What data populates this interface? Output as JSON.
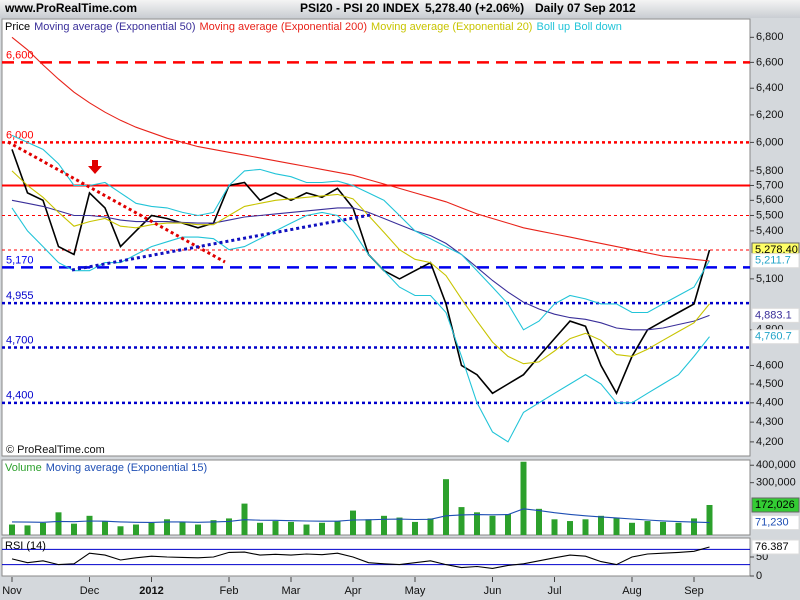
{
  "header": {
    "site": "www.ProRealTime.com",
    "symbol": "PSI20 - PSI 20 INDEX",
    "quote": "5,278.40 (+2.06%)",
    "period": "Daily 07 Sep 2012"
  },
  "chart_data": [
    {
      "type": "line",
      "log_scale": true,
      "footer": "© ProRealTime.com",
      "categories": [
        "Nov",
        null,
        null,
        null,
        null,
        "Dec",
        null,
        null,
        null,
        "2012",
        null,
        null,
        null,
        null,
        "Feb",
        null,
        null,
        null,
        "Mar",
        null,
        null,
        null,
        "Apr",
        null,
        null,
        null,
        "May",
        null,
        null,
        null,
        null,
        "Jun",
        null,
        null,
        null,
        "Jul",
        null,
        null,
        null,
        null,
        "Aug",
        null,
        null,
        null,
        "Sep",
        null
      ],
      "series": [
        {
          "name": "Price",
          "color": "#000000",
          "values": [
            5950,
            5650,
            5600,
            5300,
            5250,
            5650,
            5550,
            5300,
            5400,
            5500,
            5480,
            5450,
            5420,
            5450,
            5700,
            5720,
            5600,
            5650,
            5600,
            5650,
            5620,
            5680,
            5550,
            5250,
            5150,
            5100,
            5150,
            5200,
            4950,
            4600,
            4550,
            4450,
            4500,
            4550,
            4650,
            4750,
            4850,
            4820,
            4600,
            4450,
            4650,
            4800,
            4850,
            4900,
            4950,
            5278.4
          ]
        },
        {
          "name": "Moving average (Exponential 50)",
          "color": "#3a2f9a",
          "values": [
            5600,
            5580,
            5560,
            5530,
            5500,
            5500,
            5490,
            5470,
            5460,
            5460,
            5460,
            5455,
            5450,
            5450,
            5470,
            5490,
            5500,
            5510,
            5520,
            5530,
            5540,
            5550,
            5550,
            5520,
            5480,
            5440,
            5400,
            5370,
            5320,
            5250,
            5170,
            5090,
            5020,
            4960,
            4920,
            4890,
            4870,
            4860,
            4840,
            4810,
            4800,
            4800,
            4810,
            4830,
            4850,
            4883.1
          ]
        },
        {
          "name": "Moving average (Exponential 200)",
          "color": "#e8231a",
          "values": [
            6800,
            6700,
            6580,
            6470,
            6370,
            6290,
            6220,
            6160,
            6110,
            6070,
            6030,
            6000,
            5970,
            5950,
            5930,
            5910,
            5890,
            5870,
            5850,
            5830,
            5810,
            5790,
            5770,
            5740,
            5710,
            5680,
            5650,
            5620,
            5590,
            5550,
            5510,
            5480,
            5450,
            5420,
            5400,
            5380,
            5360,
            5340,
            5320,
            5300,
            5280,
            5260,
            5240,
            5230,
            5220,
            5210
          ]
        },
        {
          "name": "Moving average (Exponential 20)",
          "color": "#c8c400",
          "values": [
            5800,
            5700,
            5620,
            5520,
            5430,
            5460,
            5480,
            5430,
            5420,
            5440,
            5450,
            5450,
            5440,
            5440,
            5500,
            5560,
            5580,
            5600,
            5610,
            5620,
            5630,
            5640,
            5610,
            5500,
            5390,
            5280,
            5220,
            5200,
            5120,
            4980,
            4850,
            4730,
            4650,
            4610,
            4620,
            4680,
            4750,
            4780,
            4740,
            4660,
            4650,
            4690,
            4740,
            4790,
            4840,
            4950
          ]
        },
        {
          "name": "Boll up",
          "color": "#22c4d8",
          "values": [
            6050,
            6000,
            5950,
            5850,
            5700,
            5700,
            5720,
            5650,
            5580,
            5560,
            5550,
            5520,
            5500,
            5520,
            5700,
            5800,
            5810,
            5780,
            5760,
            5720,
            5720,
            5730,
            5700,
            5650,
            5600,
            5500,
            5400,
            5350,
            5300,
            5250,
            5150,
            5050,
            4950,
            4800,
            4850,
            4950,
            5000,
            4980,
            4950,
            4950,
            4900,
            4900,
            4950,
            5000,
            5050,
            5211.7
          ]
        },
        {
          "name": "Boll down",
          "color": "#22c4d8",
          "values": [
            5550,
            5400,
            5300,
            5200,
            5150,
            5150,
            5200,
            5200,
            5250,
            5300,
            5330,
            5360,
            5360,
            5350,
            5280,
            5300,
            5350,
            5400,
            5450,
            5500,
            5520,
            5500,
            5400,
            5250,
            5150,
            5050,
            5000,
            5000,
            4900,
            4650,
            4400,
            4250,
            4200,
            4350,
            4400,
            4450,
            4500,
            4550,
            4500,
            4400,
            4400,
            4450,
            4500,
            4550,
            4650,
            4760.7
          ]
        }
      ],
      "ylim": [
        4130,
        6950
      ],
      "yticks": [
        {
          "value": 6800,
          "label": "6,800"
        },
        {
          "value": 6600,
          "label": "6,600"
        },
        {
          "value": 6400,
          "label": "6,400"
        },
        {
          "value": 6200,
          "label": "6,200"
        },
        {
          "value": 6000,
          "label": "6,000"
        },
        {
          "value": 5800,
          "label": "5,800"
        },
        {
          "value": 5700,
          "label": "5,700"
        },
        {
          "value": 5600,
          "label": "5,600"
        },
        {
          "value": 5500,
          "label": "5,500"
        },
        {
          "value": 5400,
          "label": "5,400"
        },
        {
          "value": 5100,
          "label": "5,100"
        },
        {
          "value": 4800,
          "label": "4,800"
        },
        {
          "value": 4600,
          "label": "4,600"
        },
        {
          "value": 4500,
          "label": "4,500"
        },
        {
          "value": 4400,
          "label": "4,400"
        },
        {
          "value": 4300,
          "label": "4,300"
        },
        {
          "value": 4200,
          "label": "4,200"
        }
      ],
      "levels": [
        {
          "value": 6600,
          "label": "6,600",
          "color": "#ff0000",
          "style": "dashed"
        },
        {
          "value": 6000,
          "label": "6,000",
          "color": "#ff0000",
          "style": "dotted"
        },
        {
          "value": 5700,
          "color": "#ff0000",
          "style": "solid"
        },
        {
          "value": 5500,
          "color": "#ff0000",
          "style": "dotted"
        },
        {
          "value": 5278.4,
          "color": "#ff0000",
          "style": "dotted"
        },
        {
          "value": 5170,
          "label": "5,170",
          "color": "#0000ee",
          "style": "dashed"
        },
        {
          "value": 4955,
          "label": "4,955",
          "color": "#0000cc",
          "style": "dotted"
        },
        {
          "value": 4700,
          "label": "4,700",
          "color": "#0000cc",
          "style": "dotted"
        },
        {
          "value": 4400,
          "label": "4,400",
          "color": "#0000cc",
          "style": "dotted"
        }
      ],
      "value_markers": [
        {
          "value": 5278.4,
          "label": "5,278.40",
          "color": "#ffff66",
          "text_color": "#000000"
        },
        {
          "value": 5211.7,
          "label": "5,211.7",
          "color": "#ffffff",
          "text_color": "#22a4c8"
        },
        {
          "value": 4883.1,
          "label": "4,883.1",
          "color": "#ffffff",
          "text_color": "#3a2f9a"
        },
        {
          "value": 4760.7,
          "label": "4,760.7",
          "color": "#ffffff",
          "text_color": "#22a4c8"
        }
      ]
    },
    {
      "type": "bar",
      "series": [
        {
          "name": "Volume",
          "color": "#2ca02c",
          "values": [
            60000,
            55000,
            70000,
            130000,
            65000,
            110000,
            80000,
            50000,
            60000,
            70000,
            90000,
            75000,
            60000,
            85000,
            95000,
            180000,
            70000,
            80000,
            75000,
            60000,
            70000,
            80000,
            140000,
            90000,
            110000,
            100000,
            75000,
            95000,
            320000,
            160000,
            130000,
            110000,
            120000,
            420000,
            150000,
            90000,
            80000,
            90000,
            110000,
            100000,
            70000,
            80000,
            75000,
            70000,
            95000,
            172026
          ]
        },
        {
          "name": "Moving average (Exponential 15)",
          "color": "#1f4fb4",
          "values": [
            75000,
            74000,
            73000,
            78000,
            76000,
            80000,
            79000,
            75000,
            73000,
            72000,
            75000,
            75000,
            73000,
            75000,
            78000,
            88000,
            85000,
            84000,
            82000,
            80000,
            79000,
            79000,
            86000,
            87000,
            90000,
            91000,
            89000,
            90000,
            110000,
            115000,
            117000,
            116000,
            117000,
            150000,
            140000,
            128000,
            118000,
            110000,
            104000,
            98000,
            92000,
            86000,
            81000,
            77000,
            74000,
            71230
          ]
        }
      ],
      "ylim": [
        0,
        430000
      ],
      "yticks": [
        {
          "value": 400000,
          "label": "400,000"
        },
        {
          "value": 300000,
          "label": "300,000"
        }
      ],
      "value_markers": [
        {
          "value": 172026,
          "label": "172,026",
          "color": "#33cc33",
          "text_color": "#000000"
        },
        {
          "value": 71230,
          "label": "71,230",
          "color": "#ffffff",
          "text_color": "#1f4fb4"
        }
      ]
    },
    {
      "type": "line",
      "title": "RSI (14)",
      "series": [
        {
          "name": "RSI",
          "color": "#000000",
          "values": [
            45,
            35,
            40,
            30,
            32,
            60,
            55,
            42,
            48,
            52,
            50,
            49,
            48,
            50,
            62,
            63,
            55,
            57,
            55,
            58,
            56,
            60,
            50,
            35,
            32,
            30,
            35,
            40,
            30,
            22,
            25,
            20,
            28,
            32,
            40,
            48,
            55,
            52,
            38,
            30,
            50,
            58,
            60,
            62,
            65,
            76.387
          ]
        }
      ],
      "ylim": [
        0,
        100
      ],
      "yticks": [
        50,
        0
      ],
      "levels": [
        {
          "value": 70,
          "color": "#0000cc",
          "style": "solid"
        },
        {
          "value": 30,
          "color": "#0000cc",
          "style": "solid"
        }
      ],
      "value_markers": [
        {
          "value": 76.387,
          "label": "76.387",
          "color": "#ffffff",
          "text_color": "#000000"
        }
      ]
    }
  ]
}
